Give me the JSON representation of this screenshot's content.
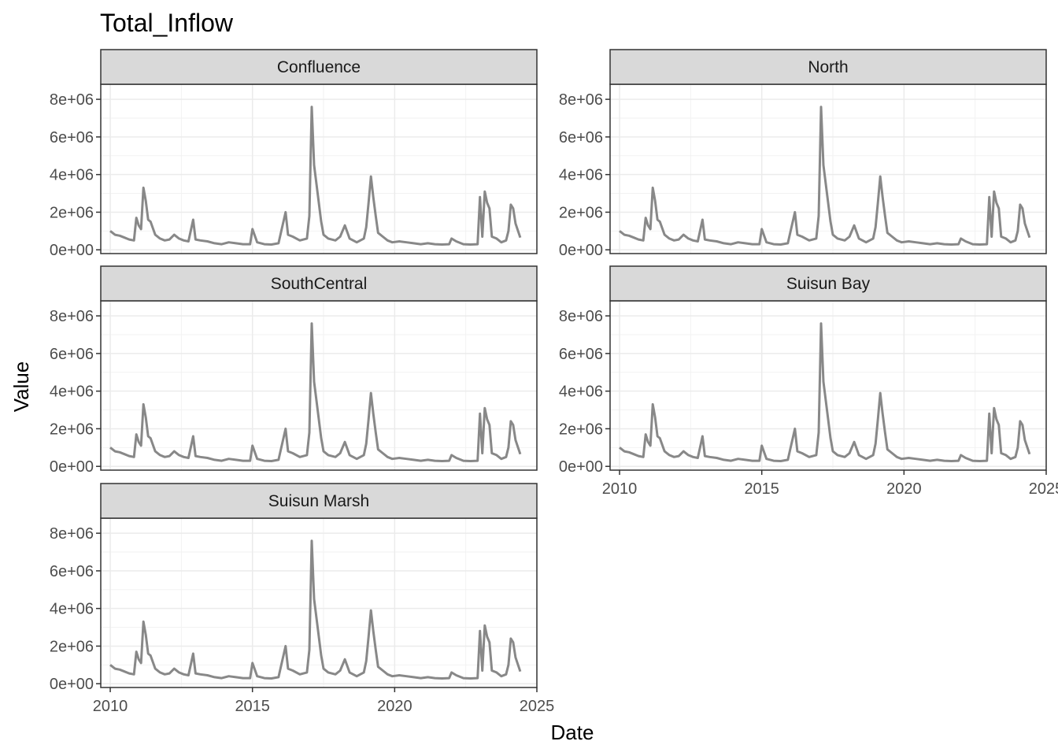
{
  "chart_data": {
    "type": "line",
    "title": "Total_Inflow",
    "xlabel": "Date",
    "ylabel": "Value",
    "xlim": [
      "2009-09-01",
      "2025-01-01"
    ],
    "ylim": [
      -200000,
      8800000
    ],
    "x_ticks": [
      "2010",
      "2015",
      "2020",
      "2025"
    ],
    "y_ticks": [
      "0e+00",
      "2e+06",
      "4e+06",
      "6e+06",
      "8e+06"
    ],
    "y_tick_values": [
      0,
      2000000,
      4000000,
      6000000,
      8000000
    ],
    "grid": true,
    "line_color": "#888888",
    "strip_fill": "#d9d9d9",
    "panels": [
      "Confluence",
      "North",
      "SouthCentral",
      "Suisun Bay",
      "Suisun Marsh"
    ],
    "x": [
      "2010-01",
      "2010-03",
      "2010-05",
      "2010-07",
      "2010-09",
      "2010-11",
      "2010-12",
      "2011-01",
      "2011-02",
      "2011-03",
      "2011-04",
      "2011-05",
      "2011-06",
      "2011-08",
      "2011-10",
      "2011-12",
      "2012-02",
      "2012-04",
      "2012-06",
      "2012-08",
      "2012-10",
      "2012-12",
      "2013-01",
      "2013-03",
      "2013-06",
      "2013-09",
      "2013-12",
      "2014-03",
      "2014-06",
      "2014-09",
      "2014-12",
      "2015-01",
      "2015-03",
      "2015-06",
      "2015-09",
      "2015-12",
      "2016-01",
      "2016-03",
      "2016-04",
      "2016-06",
      "2016-09",
      "2016-12",
      "2017-01",
      "2017-02",
      "2017-03",
      "2017-04",
      "2017-05",
      "2017-06",
      "2017-07",
      "2017-09",
      "2017-12",
      "2018-02",
      "2018-04",
      "2018-06",
      "2018-09",
      "2018-12",
      "2019-01",
      "2019-02",
      "2019-03",
      "2019-04",
      "2019-05",
      "2019-06",
      "2019-08",
      "2019-10",
      "2019-12",
      "2020-03",
      "2020-06",
      "2020-09",
      "2020-12",
      "2021-03",
      "2021-06",
      "2021-09",
      "2021-12",
      "2022-01",
      "2022-03",
      "2022-06",
      "2022-09",
      "2022-12",
      "2023-01",
      "2023-02",
      "2023-03",
      "2023-04",
      "2023-05",
      "2023-06",
      "2023-08",
      "2023-10",
      "2023-12",
      "2024-01",
      "2024-02",
      "2024-03",
      "2024-04",
      "2024-06"
    ],
    "series": [
      {
        "values": [
          1000000,
          800000,
          750000,
          650000,
          550000,
          500000,
          1700000,
          1300000,
          1100000,
          3300000,
          2600000,
          1600000,
          1500000,
          800000,
          600000,
          500000,
          550000,
          800000,
          600000,
          500000,
          450000,
          1600000,
          550000,
          500000,
          450000,
          350000,
          300000,
          400000,
          350000,
          300000,
          300000,
          1100000,
          400000,
          300000,
          280000,
          350000,
          900000,
          2000000,
          800000,
          700000,
          500000,
          600000,
          1800000,
          7600000,
          4500000,
          3500000,
          2500000,
          1500000,
          800000,
          600000,
          500000,
          700000,
          1300000,
          600000,
          400000,
          600000,
          1200000,
          2500000,
          3900000,
          2800000,
          1800000,
          900000,
          700000,
          500000,
          400000,
          450000,
          400000,
          350000,
          300000,
          350000,
          300000,
          280000,
          300000,
          600000,
          450000,
          300000,
          280000,
          300000,
          2800000,
          700000,
          3100000,
          2500000,
          2200000,
          700000,
          600000,
          400000,
          500000,
          1000000,
          2400000,
          2200000,
          1400000,
          650000
        ]
      }
    ]
  }
}
